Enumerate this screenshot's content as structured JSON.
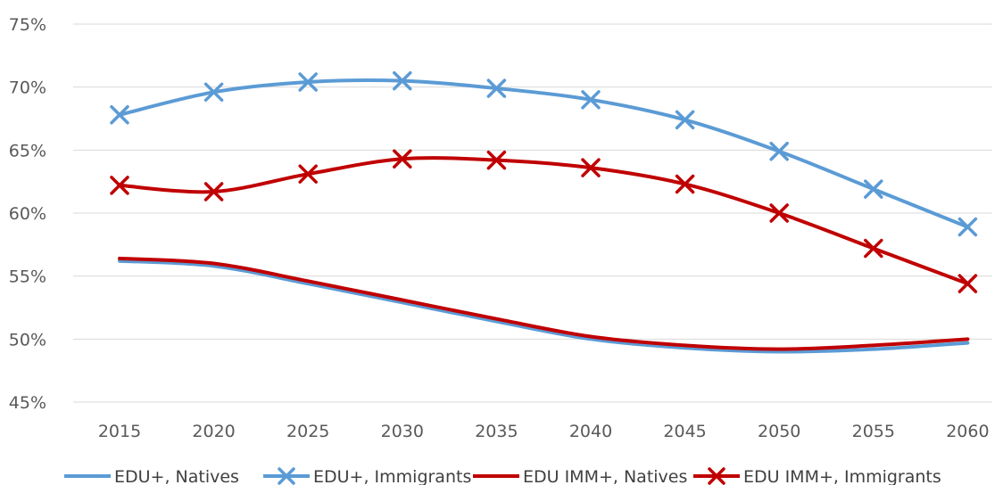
{
  "chart_data": {
    "type": "line",
    "title": "",
    "xlabel": "",
    "ylabel": "",
    "categories": [
      "2015",
      "2020",
      "2025",
      "2030",
      "2035",
      "2040",
      "2045",
      "2050",
      "2055",
      "2060"
    ],
    "ylim": [
      45,
      75
    ],
    "yticks": [
      "45%",
      "50%",
      "55%",
      "60%",
      "65%",
      "70%",
      "75%"
    ],
    "grid": true,
    "legend_position": "bottom",
    "series": [
      {
        "name": "EDU+, Natives",
        "color": "#5b9bd5",
        "marker": "none",
        "values": [
          56.2,
          55.8,
          54.4,
          52.9,
          51.4,
          50.0,
          49.3,
          49.0,
          49.2,
          49.7
        ]
      },
      {
        "name": "EDU+, Immigrants",
        "color": "#5b9bd5",
        "marker": "x",
        "values": [
          67.8,
          69.6,
          70.4,
          70.5,
          69.9,
          69.0,
          67.4,
          64.9,
          61.9,
          58.9
        ]
      },
      {
        "name": "EDU  IMM+, Natives",
        "color": "#c00000",
        "marker": "none",
        "values": [
          56.4,
          56.0,
          54.6,
          53.1,
          51.6,
          50.2,
          49.5,
          49.2,
          49.5,
          50.0
        ]
      },
      {
        "name": "EDU  IMM+, Immigrants",
        "color": "#c00000",
        "marker": "x",
        "values": [
          62.2,
          61.7,
          63.1,
          64.3,
          64.2,
          63.6,
          62.3,
          60.0,
          57.2,
          54.4
        ]
      }
    ]
  }
}
